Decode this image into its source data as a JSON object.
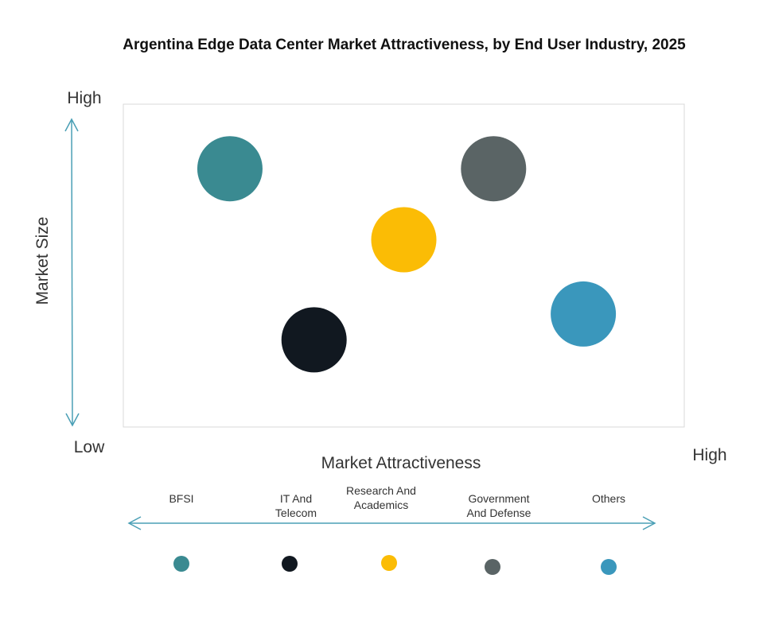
{
  "chart_data": {
    "type": "scatter",
    "title": "Argentina Edge Data Center Market Attractiveness,  by End User Industry, 2025",
    "xlabel": "Market Attractiveness",
    "ylabel": "Market Size",
    "x_low": "Low",
    "x_high": "High",
    "y_high": "High",
    "xlim": [
      0,
      100
    ],
    "ylim": [
      0,
      100
    ],
    "grid": false,
    "legend_position": "bottom",
    "series": [
      {
        "name": "BFSI",
        "x": 19,
        "y": 80,
        "color": "#3a8a91"
      },
      {
        "name": "IT And Telecom",
        "x": 34,
        "y": 27,
        "color": "#111820"
      },
      {
        "name": "Research And Academics",
        "x": 50,
        "y": 58,
        "color": "#fbbc05"
      },
      {
        "name": "Government And Defense",
        "x": 66,
        "y": 80,
        "color": "#5a6465"
      },
      {
        "name": "Others",
        "x": 82,
        "y": 35,
        "color": "#3a97bc"
      }
    ],
    "legend_labels": [
      [
        "BFSI"
      ],
      [
        "IT And",
        "Telecom"
      ],
      [
        "Research And",
        "Academics"
      ],
      [
        "Government",
        "And Defense"
      ],
      [
        "Others"
      ]
    ],
    "arrow_color": "#4a9fb5"
  }
}
